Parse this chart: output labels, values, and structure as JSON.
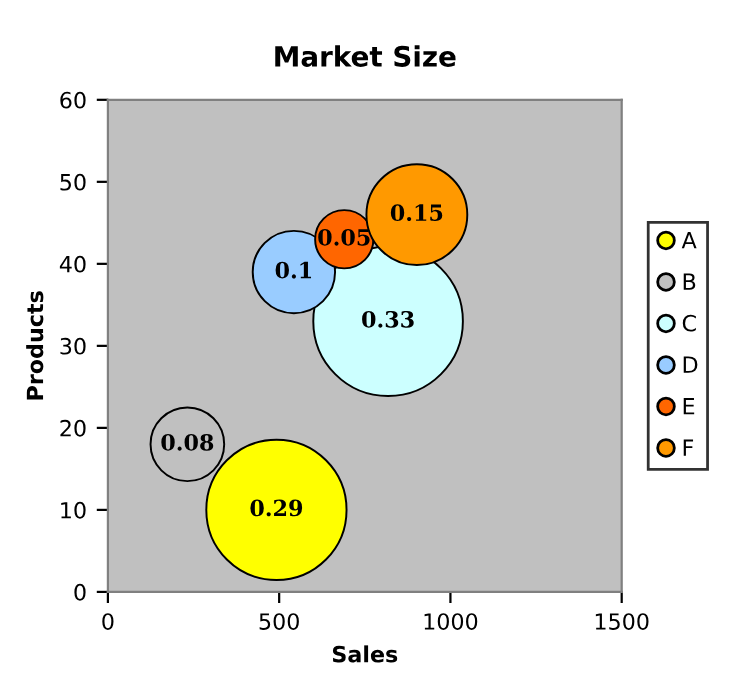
{
  "chart_data": {
    "type": "bubble",
    "title": "Market Size",
    "xlabel": "Sales",
    "ylabel": "Products",
    "xlim": [
      0,
      1500
    ],
    "xticks": [
      0,
      500,
      1000,
      1500
    ],
    "ylim": [
      0,
      60
    ],
    "yticks": [
      0,
      10,
      20,
      30,
      40,
      50,
      60
    ],
    "grid": false,
    "legend": "right",
    "series": [
      {
        "name": "A",
        "color": "#ffff00",
        "x": [
          492
        ],
        "values": [
          10
        ],
        "sizes": [
          0.29
        ],
        "value_labels": [
          "0.29"
        ]
      },
      {
        "name": "B",
        "color": "#c0c0c0",
        "x": [
          232
        ],
        "values": [
          18
        ],
        "sizes": [
          0.08
        ],
        "value_labels": [
          "0.08"
        ]
      },
      {
        "name": "C",
        "color": "#ccffff",
        "x": [
          818
        ],
        "values": [
          33
        ],
        "sizes": [
          0.33
        ],
        "value_labels": [
          "0.33"
        ]
      },
      {
        "name": "D",
        "color": "#99ccff",
        "x": [
          543
        ],
        "values": [
          39
        ],
        "sizes": [
          0.1
        ],
        "value_labels": [
          "0.1"
        ]
      },
      {
        "name": "E",
        "color": "#ff6600",
        "x": [
          690
        ],
        "values": [
          43
        ],
        "sizes": [
          0.05
        ],
        "value_labels": [
          "0.05"
        ]
      },
      {
        "name": "F",
        "color": "#ff9900",
        "x": [
          902
        ],
        "values": [
          46
        ],
        "sizes": [
          0.15
        ],
        "value_labels": [
          "0.15"
        ]
      }
    ]
  }
}
